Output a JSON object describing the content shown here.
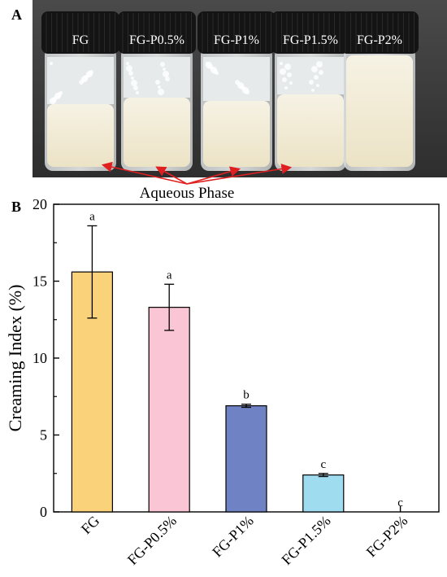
{
  "panel_a": {
    "label": "A",
    "vial_labels": [
      "FG",
      "FG-P0.5%",
      "FG-P1%",
      "FG-P1.5%",
      "FG-P2%"
    ],
    "annotation": "Aqueous Phase"
  },
  "panel_b": {
    "label": "B"
  },
  "colors": {
    "bars": [
      "#f9d27a",
      "#fac5d4",
      "#6f82c4",
      "#9fdcef",
      "#ffffff"
    ],
    "cap": "#141414",
    "emulsion": "#f3eedc",
    "arrow": "#e02020"
  },
  "chart_data": {
    "type": "bar",
    "categories": [
      "FG",
      "FG-P0.5%",
      "FG-P1%",
      "FG-P1.5%",
      "FG-P2%"
    ],
    "values": [
      15.6,
      13.3,
      6.9,
      2.4,
      0
    ],
    "errors": [
      3.0,
      1.5,
      0.1,
      0.1,
      0
    ],
    "significance_letters": [
      "a",
      "a",
      "b",
      "c",
      "c"
    ],
    "xlabel": "",
    "ylabel": "Creaming Index (%)",
    "ylim": [
      0,
      20
    ],
    "yticks": [
      0,
      5,
      10,
      15,
      20
    ],
    "grid": false
  }
}
